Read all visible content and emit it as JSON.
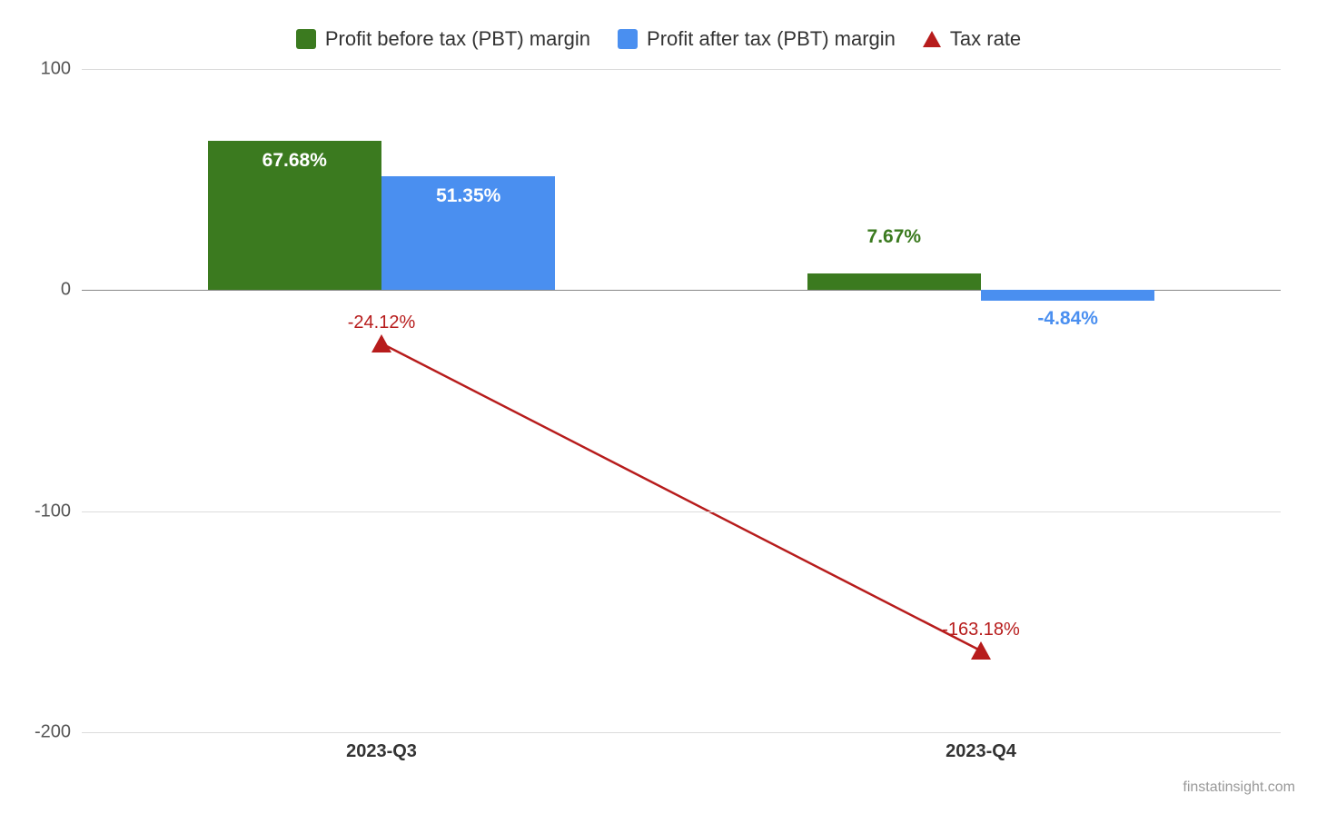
{
  "chart": {
    "type": "grouped-bar-with-line",
    "background_color": "#ffffff",
    "grid_color": "#dcdcdc",
    "baseline_color": "#888888",
    "legend": {
      "items": [
        {
          "label": "Profit before tax (PBT) margin",
          "swatch_color": "#3b7a1f",
          "kind": "square"
        },
        {
          "label": "Profit after tax (PBT) margin",
          "swatch_color": "#4a8ff0",
          "kind": "square"
        },
        {
          "label": "Tax rate",
          "swatch_color": "#b71c1c",
          "kind": "triangle"
        }
      ]
    },
    "y_axis": {
      "min": -200,
      "max": 100,
      "ticks": [
        100,
        0,
        -100,
        -200
      ],
      "label_fontsize": 20,
      "label_color": "#555555"
    },
    "x_axis": {
      "categories": [
        "2023-Q3",
        "2023-Q4"
      ],
      "label_fontsize": 20,
      "label_color": "#333333",
      "label_fontweight": "bold"
    },
    "series": {
      "pbt_before": {
        "color": "#3b7a1f",
        "label_color": "#3b7a1f",
        "values": [
          67.68,
          7.67
        ],
        "display": [
          "67.68%",
          "7.67%"
        ]
      },
      "pbt_after": {
        "color": "#4a8ff0",
        "label_color": "#4a8ff0",
        "values": [
          51.35,
          -4.84
        ],
        "display": [
          "51.35%",
          "-4.84%"
        ]
      },
      "tax_rate": {
        "color": "#b71c1c",
        "marker": "triangle",
        "line_width": 2.5,
        "values": [
          -24.12,
          -163.18
        ],
        "display": [
          "-24.12%",
          "-163.18%"
        ]
      }
    },
    "bar": {
      "width_pct": 14.5,
      "group_gap_pct": 0
    },
    "watermark": "finstatinsight.com",
    "watermark_color": "#999999"
  }
}
